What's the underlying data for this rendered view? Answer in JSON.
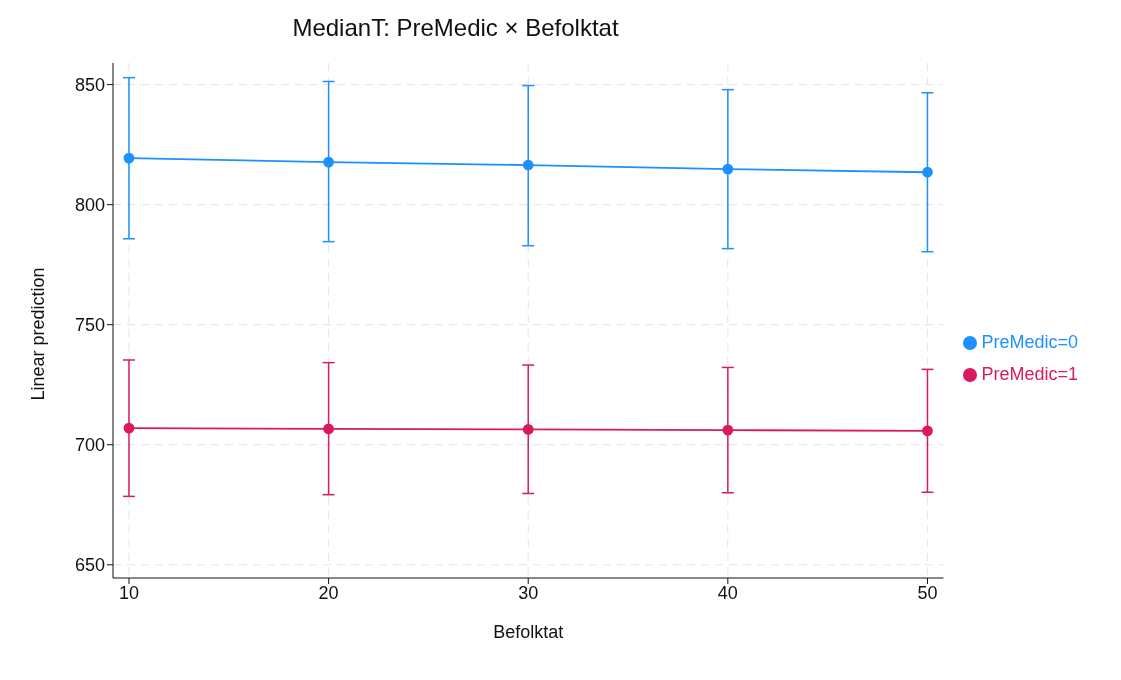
{
  "chart_data": {
    "type": "line",
    "title": "MedianT: PreMedic × Befolktat",
    "xlabel": "Befolktat",
    "ylabel": "Linear prediction",
    "x": [
      10,
      20,
      30,
      40,
      50
    ],
    "series": [
      {
        "name": "PreMedic=0",
        "color": "#1e90ff",
        "values": [
          819.4,
          817.7,
          816.5,
          814.8,
          813.5
        ],
        "errors": [
          [
            785.8,
            852.9
          ],
          [
            784.6,
            851.3
          ],
          [
            782.9,
            849.6
          ],
          [
            781.7,
            847.9
          ],
          [
            780.4,
            846.6
          ]
        ]
      },
      {
        "name": "PreMedic=1",
        "color": "#d81b60",
        "values": [
          706.9,
          706.6,
          706.4,
          706.1,
          705.8
        ],
        "errors": [
          [
            678.5,
            735.3
          ],
          [
            679.2,
            734.2
          ],
          [
            679.7,
            733.2
          ],
          [
            680.0,
            732.2
          ],
          [
            680.2,
            731.4
          ]
        ]
      }
    ],
    "xlim": [
      9.2,
      50.8
    ],
    "xticks": [
      10,
      20,
      30,
      40,
      50
    ],
    "ylim": [
      644.5,
      859
    ],
    "yticks": [
      650,
      700,
      750,
      800,
      850
    ],
    "grid": true,
    "legend": "right",
    "marker": "circle",
    "line_style": "solid"
  }
}
